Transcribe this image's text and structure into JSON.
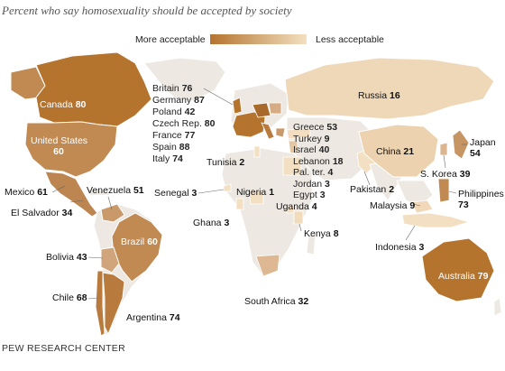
{
  "title": "Percent who say homosexuality should be accepted by society",
  "legend": {
    "more_label": "More acceptable",
    "less_label": "Less acceptable",
    "color_more": "#b5742e",
    "color_less": "#f3dfc1",
    "color_no_data": "#ede8e2"
  },
  "countries": {
    "canada": {
      "name": "Canada",
      "value": "80"
    },
    "united_states": {
      "name": "United States",
      "value": "60"
    },
    "mexico": {
      "name": "Mexico",
      "value": "61"
    },
    "el_salvador": {
      "name": "El Salvador",
      "value": "34"
    },
    "venezuela": {
      "name": "Venezuela",
      "value": "51"
    },
    "brazil": {
      "name": "Brazil",
      "value": "60"
    },
    "bolivia": {
      "name": "Bolivia",
      "value": "43"
    },
    "chile": {
      "name": "Chile",
      "value": "68"
    },
    "argentina": {
      "name": "Argentina",
      "value": "74"
    },
    "britain": {
      "name": "Britain",
      "value": "76"
    },
    "germany": {
      "name": "Germany",
      "value": "87"
    },
    "poland": {
      "name": "Poland",
      "value": "42"
    },
    "czech": {
      "name": "Czech Rep.",
      "value": "80"
    },
    "france": {
      "name": "France",
      "value": "77"
    },
    "spain": {
      "name": "Spain",
      "value": "88"
    },
    "italy": {
      "name": "Italy",
      "value": "74"
    },
    "tunisia": {
      "name": "Tunisia",
      "value": "2"
    },
    "senegal": {
      "name": "Senegal",
      "value": "3"
    },
    "nigeria": {
      "name": "Nigeria",
      "value": "1"
    },
    "ghana": {
      "name": "Ghana",
      "value": "3"
    },
    "uganda": {
      "name": "Uganda",
      "value": "4"
    },
    "kenya": {
      "name": "Kenya",
      "value": "8"
    },
    "south_africa": {
      "name": "South Africa",
      "value": "32"
    },
    "greece": {
      "name": "Greece",
      "value": "53"
    },
    "turkey": {
      "name": "Turkey",
      "value": "9"
    },
    "israel": {
      "name": "Israel",
      "value": "40"
    },
    "lebanon": {
      "name": "Lebanon",
      "value": "18"
    },
    "pal_ter": {
      "name": "Pal. ter.",
      "value": "4"
    },
    "jordan": {
      "name": "Jordan",
      "value": "3"
    },
    "egypt": {
      "name": "Egypt",
      "value": "3"
    },
    "russia": {
      "name": "Russia",
      "value": "16"
    },
    "pakistan": {
      "name": "Pakistan",
      "value": "2"
    },
    "china": {
      "name": "China",
      "value": "21"
    },
    "japan": {
      "name": "Japan",
      "value": "54"
    },
    "s_korea": {
      "name": "S. Korea",
      "value": "39"
    },
    "malaysia": {
      "name": "Malaysia",
      "value": "9"
    },
    "philippines": {
      "name": "Philippines",
      "value": "73"
    },
    "indonesia": {
      "name": "Indonesia",
      "value": "3"
    },
    "australia": {
      "name": "Australia",
      "value": "79"
    }
  },
  "source": "PEW RESEARCH CENTER"
}
